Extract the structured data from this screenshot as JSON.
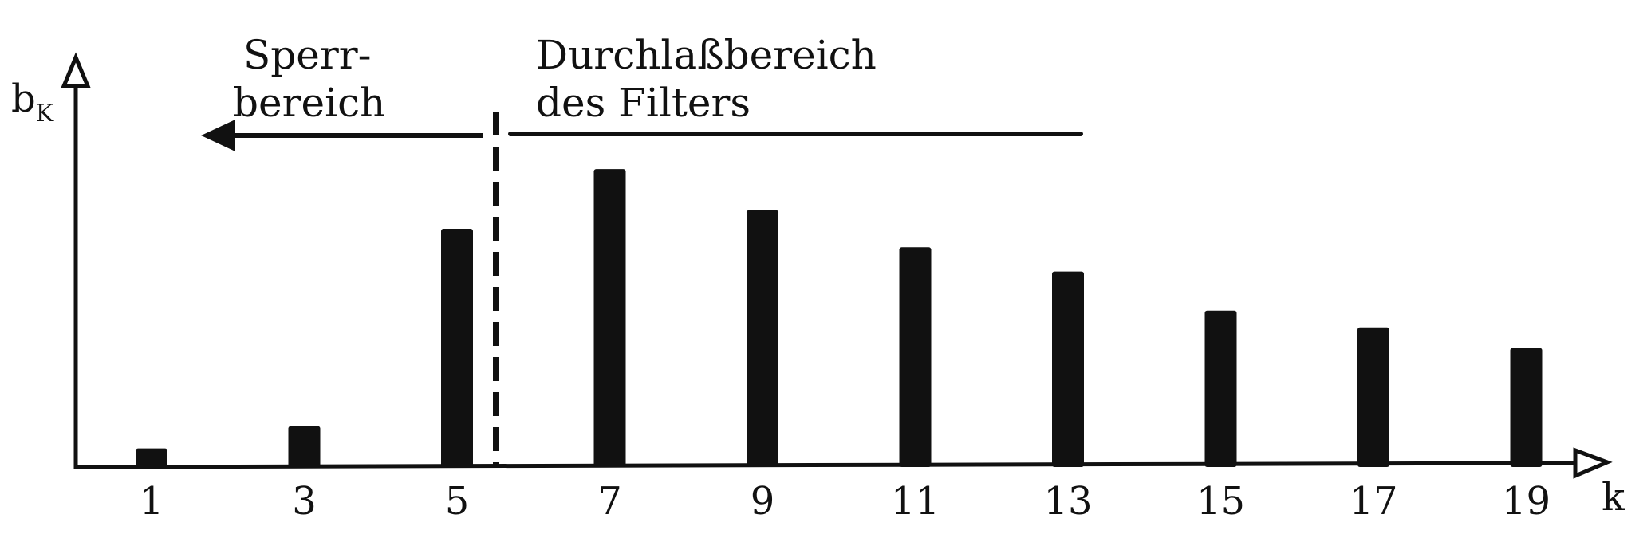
{
  "chart_data": {
    "type": "bar",
    "title": "",
    "y_axis": {
      "label": "b",
      "label_subscript": "K"
    },
    "x_axis": {
      "label": "k"
    },
    "categories": [
      "1",
      "3",
      "5",
      "7",
      "9",
      "11",
      "13",
      "15",
      "17",
      "19"
    ],
    "values": [
      1.0,
      2.2,
      12.8,
      16.0,
      13.8,
      11.8,
      10.5,
      8.4,
      7.5,
      6.4
    ],
    "ylim": [
      0,
      22
    ],
    "grid": false,
    "bar_color": "#111111",
    "annotations": {
      "stop_band": {
        "lines": [
          "Sperr-",
          "bereich"
        ],
        "arrow_direction": "left"
      },
      "pass_band": {
        "lines": [
          "Durchlaßbereich",
          "des Filters"
        ],
        "arrow_direction": "none"
      },
      "cutoff": {
        "between": [
          "5",
          "7"
        ],
        "style": "dashed"
      }
    }
  }
}
